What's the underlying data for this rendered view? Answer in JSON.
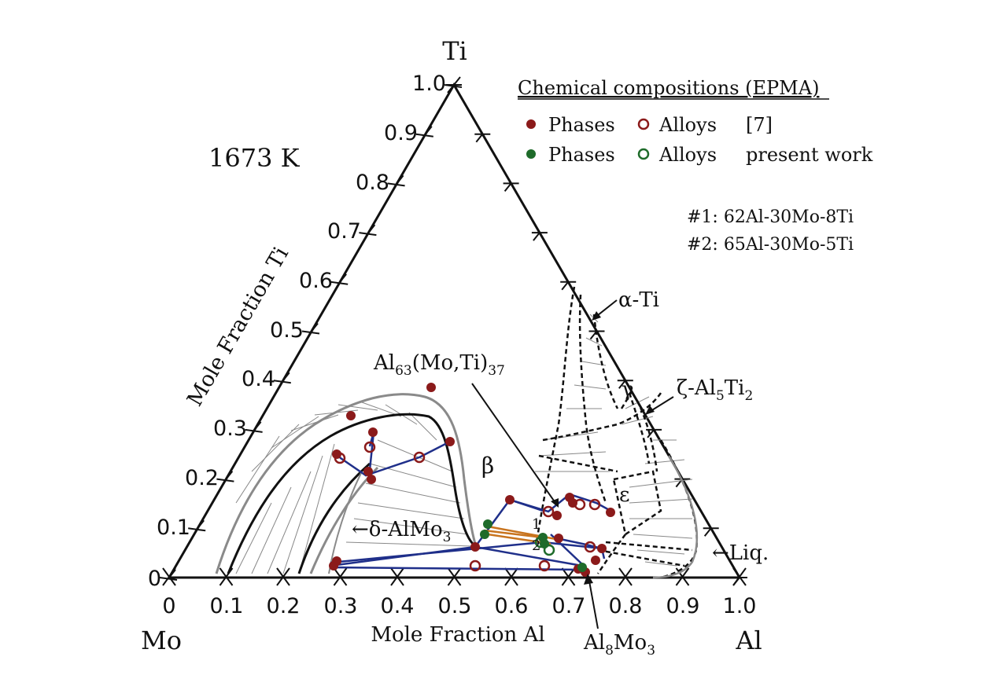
{
  "diagram": {
    "temperature_label": "1673 K",
    "corner_labels": {
      "top": "Ti",
      "left": "Mo",
      "right": "Al"
    },
    "axis_titles": {
      "left": "Mole Fraction Ti",
      "bottom": "Mole Fraction Al"
    },
    "ti_ticks": [
      "1.0",
      "0.9",
      "0.8",
      "0.7",
      "0.6",
      "0.5",
      "0.4",
      "0.3",
      "0.2",
      "0.1",
      "0"
    ],
    "al_ticks": [
      "0",
      "0.1",
      "0.2",
      "0.3",
      "0.4",
      "0.5",
      "0.6",
      "0.7",
      "0.8",
      "0.9",
      "1.0"
    ],
    "legend": {
      "title": "Chemical compositions (EPMA)",
      "row1": {
        "phases": "Phases",
        "alloys": "Alloys",
        "source": "[7]"
      },
      "row2": {
        "phases": "Phases",
        "alloys": "Alloys",
        "source": "present work"
      },
      "colors": {
        "ref7": "#8b1a1a",
        "present": "#1e6b2a"
      }
    },
    "alloy_notes": [
      "#1: 62Al-30Mo-8Ti",
      "#2: 65Al-30Mo-5Ti"
    ],
    "phase_labels": {
      "alpha": "α-Ti",
      "gamma": "γ",
      "zeta_prefix": "ζ-Al",
      "zeta_sub1": "5",
      "zeta_mid": "Ti",
      "zeta_sub2": "2",
      "beta": "β",
      "epsilon": "ε",
      "delta": "←δ-AlMo",
      "delta_sub": "3",
      "liq": "←Liq.",
      "al63_prefix": "Al",
      "al63_sub1": "63",
      "al63_mid": "(Mo,Ti)",
      "al63_sub2": "37",
      "al8_prefix": "Al",
      "al8_sub1": "8",
      "al8_mid": "Mo",
      "al8_sub2": "3",
      "marker1": "1",
      "marker2": "2"
    },
    "line_colors": {
      "tie_blue": "#1f2f8a",
      "tie_orange": "#c8741e",
      "boundary_gray": "#8a8a8a"
    }
  }
}
